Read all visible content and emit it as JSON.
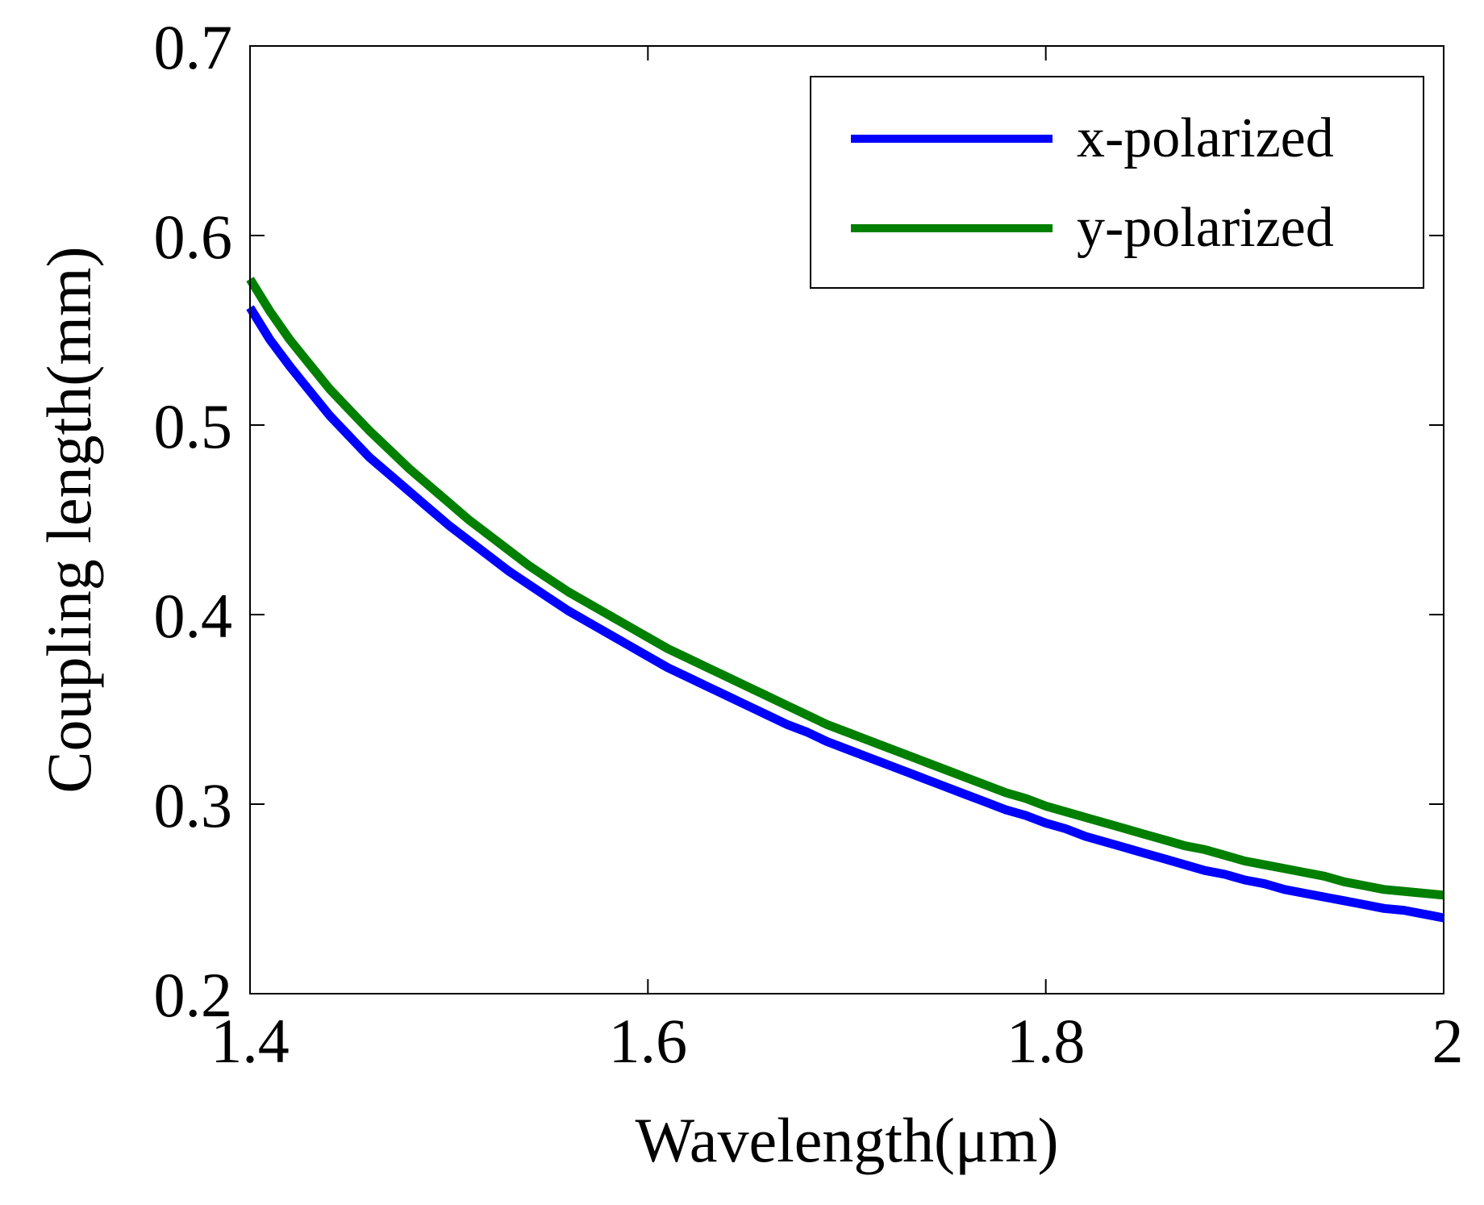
{
  "chart_data": {
    "type": "line",
    "title": "",
    "xlabel": "Wavelength(μm)",
    "ylabel": "Coupling length(mm)",
    "xlim": [
      1.4,
      2.0
    ],
    "ylim": [
      0.2,
      0.7
    ],
    "xticks": [
      1.4,
      1.6,
      1.8,
      2.0
    ],
    "xtick_labels": [
      "1.4",
      "1.6",
      "1.8",
      "2"
    ],
    "yticks": [
      0.2,
      0.3,
      0.4,
      0.5,
      0.6,
      0.7
    ],
    "ytick_labels": [
      "0.2",
      "0.3",
      "0.4",
      "0.5",
      "0.6",
      "0.7"
    ],
    "grid": false,
    "legend": "top-right",
    "x": [
      1.4,
      1.41,
      1.42,
      1.43,
      1.44,
      1.45,
      1.46,
      1.47,
      1.48,
      1.49,
      1.5,
      1.51,
      1.52,
      1.53,
      1.54,
      1.55,
      1.56,
      1.57,
      1.58,
      1.59,
      1.6,
      1.61,
      1.62,
      1.63,
      1.64,
      1.65,
      1.66,
      1.67,
      1.68,
      1.69,
      1.7,
      1.71,
      1.72,
      1.73,
      1.74,
      1.75,
      1.76,
      1.77,
      1.78,
      1.79,
      1.8,
      1.81,
      1.82,
      1.83,
      1.84,
      1.85,
      1.86,
      1.87,
      1.88,
      1.89,
      1.9,
      1.91,
      1.92,
      1.93,
      1.94,
      1.95,
      1.96,
      1.97,
      1.98,
      1.99,
      2.0
    ],
    "series": [
      {
        "name": "x-polarized",
        "color": "#0000ff",
        "values": [
          0.562,
          0.545,
          0.531,
          0.518,
          0.505,
          0.494,
          0.483,
          0.474,
          0.465,
          0.456,
          0.447,
          0.439,
          0.431,
          0.423,
          0.416,
          0.409,
          0.402,
          0.396,
          0.39,
          0.384,
          0.378,
          0.372,
          0.367,
          0.362,
          0.357,
          0.352,
          0.347,
          0.342,
          0.338,
          0.333,
          0.329,
          0.325,
          0.321,
          0.317,
          0.313,
          0.309,
          0.305,
          0.301,
          0.297,
          0.294,
          0.29,
          0.287,
          0.283,
          0.28,
          0.277,
          0.274,
          0.271,
          0.268,
          0.265,
          0.263,
          0.26,
          0.258,
          0.255,
          0.253,
          0.251,
          0.249,
          0.247,
          0.245,
          0.244,
          0.242,
          0.24
        ]
      },
      {
        "name": "y-polarized",
        "color": "#007f00",
        "values": [
          0.577,
          0.56,
          0.545,
          0.532,
          0.519,
          0.508,
          0.497,
          0.487,
          0.477,
          0.468,
          0.459,
          0.45,
          0.442,
          0.434,
          0.426,
          0.419,
          0.412,
          0.406,
          0.4,
          0.394,
          0.388,
          0.382,
          0.377,
          0.372,
          0.367,
          0.362,
          0.357,
          0.352,
          0.347,
          0.342,
          0.338,
          0.334,
          0.33,
          0.326,
          0.322,
          0.318,
          0.314,
          0.31,
          0.306,
          0.303,
          0.299,
          0.296,
          0.293,
          0.29,
          0.287,
          0.284,
          0.281,
          0.278,
          0.276,
          0.273,
          0.27,
          0.268,
          0.266,
          0.264,
          0.262,
          0.259,
          0.257,
          0.255,
          0.254,
          0.253,
          0.252
        ]
      }
    ]
  }
}
